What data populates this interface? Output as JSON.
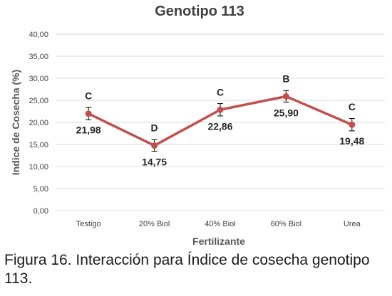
{
  "chart_data": {
    "type": "line",
    "title": "Genotipo 113",
    "xlabel": "Fertilizante",
    "ylabel": "Indice de Cosecha (%)",
    "categories": [
      "Testigo",
      "20% Biol",
      "40% Biol",
      "60% Biol",
      "Urea"
    ],
    "series": [
      {
        "values": [
          21.98,
          14.75,
          22.86,
          25.9,
          19.48
        ],
        "error": [
          1.4,
          1.3,
          1.4,
          1.3,
          1.4
        ],
        "value_labels": [
          "21,98",
          "14,75",
          "22,86",
          "25,90",
          "19,48"
        ],
        "group_letters": [
          "C",
          "D",
          "C",
          "B",
          "C"
        ],
        "color": "#c0504d"
      }
    ],
    "ylim": [
      0,
      40
    ],
    "ytick_values": [
      0,
      5,
      10,
      15,
      20,
      25,
      30,
      35,
      40
    ],
    "ytick_labels": [
      "0,00",
      "5,00",
      "10,00",
      "15,00",
      "20,00",
      "25,00",
      "30,00",
      "35,00",
      "40,00"
    ],
    "grid": true,
    "legend": "none"
  },
  "caption": "Figura 16. Interacción para Índice de cosecha genotipo 113."
}
